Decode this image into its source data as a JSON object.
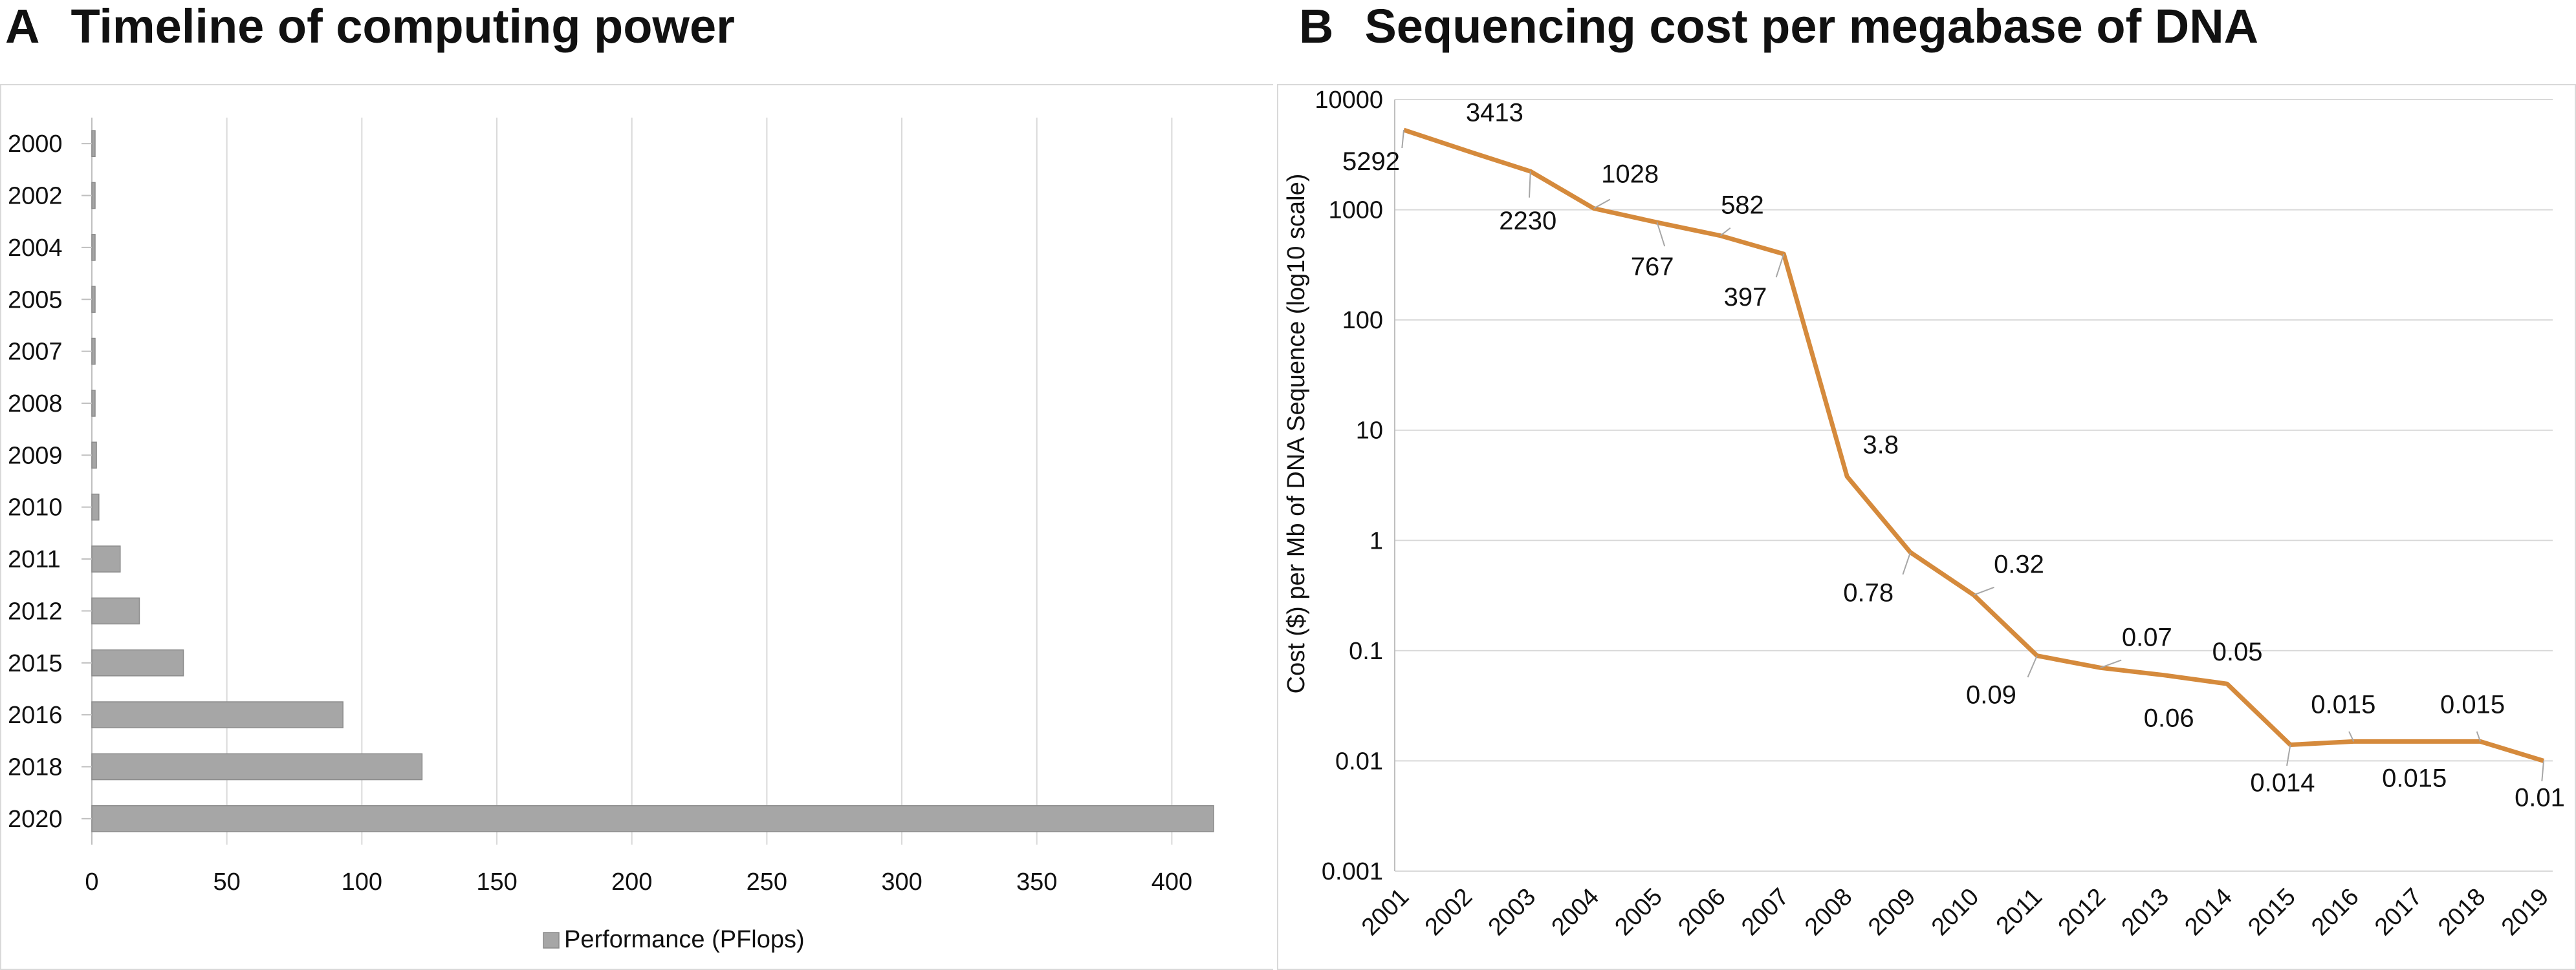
{
  "panels": {
    "a": {
      "letter": "A",
      "title": "Timeline of computing power"
    },
    "b": {
      "letter": "B",
      "title": "Sequencing cost per megabase of DNA"
    }
  },
  "chart_data": [
    {
      "type": "bar",
      "orientation": "horizontal",
      "title": "Timeline of computing power",
      "categories": [
        "2000",
        "2002",
        "2004",
        "2005",
        "2007",
        "2008",
        "2009",
        "2010",
        "2011",
        "2012",
        "2015",
        "2016",
        "2018",
        "2020"
      ],
      "series": [
        {
          "name": "Performance (PFlops)",
          "values": [
            0.005,
            0.04,
            0.07,
            0.28,
            0.48,
            1.1,
            1.7,
            2.6,
            10.5,
            17.6,
            33.9,
            93,
            122.3,
            415.5
          ]
        }
      ],
      "xlim": [
        0,
        415
      ],
      "xticks": [
        0,
        50,
        100,
        150,
        200,
        250,
        300,
        350,
        400
      ],
      "legend": "bottom",
      "legend_label": "Performance (PFlops)",
      "grid": true,
      "bar_color": "#a6a6a6"
    },
    {
      "type": "line",
      "title": "Sequencing cost per megabase of DNA",
      "ylabel": "Cost ($) per Mb of DNA Sequence (log10 scale)",
      "yscale": "log10",
      "ylim": [
        0.001,
        10000
      ],
      "yticks": [
        10000,
        1000,
        100,
        10,
        1,
        0.1,
        0.01,
        0.001
      ],
      "ytick_labels": [
        "10000",
        "1000",
        "100",
        "10",
        "1",
        "0.1",
        "0.01",
        "0.001"
      ],
      "x_labels": [
        "2001",
        "2002",
        "2003",
        "2004",
        "2005",
        "2006",
        "2007",
        "2008",
        "2009",
        "2010",
        "2011",
        "2012",
        "2013",
        "2014",
        "2015",
        "2016",
        "2017",
        "2018",
        "2019"
      ],
      "points": [
        {
          "x": 0,
          "y": 5292,
          "label": "5292"
        },
        {
          "x": 1,
          "y": 3413,
          "label": "3413"
        },
        {
          "x": 2,
          "y": 2230,
          "label": "2230"
        },
        {
          "x": 3,
          "y": 1028,
          "label": "1028"
        },
        {
          "x": 4,
          "y": 767,
          "label": "767"
        },
        {
          "x": 5,
          "y": 582,
          "label": "582"
        },
        {
          "x": 6,
          "y": 397,
          "label": "397"
        },
        {
          "x": 7,
          "y": 3.8,
          "label": "3.8"
        },
        {
          "x": 8,
          "y": 0.78,
          "label": "0.78"
        },
        {
          "x": 9,
          "y": 0.32,
          "label": "0.32"
        },
        {
          "x": 10,
          "y": 0.09,
          "label": "0.09"
        },
        {
          "x": 11,
          "y": 0.07,
          "label": "0.07"
        },
        {
          "x": 12,
          "y": 0.06,
          "label": "0.06"
        },
        {
          "x": 13,
          "y": 0.05,
          "label": "0.05"
        },
        {
          "x": 14,
          "y": 0.014,
          "label": "0.014"
        },
        {
          "x": 15,
          "y": 0.015,
          "label": "0.015"
        },
        {
          "x": 16,
          "y": 0.015,
          "label": "0.015"
        },
        {
          "x": 17,
          "y": 0.015,
          "label": "0.015"
        },
        {
          "x": 18,
          "y": 0.01,
          "label": "0.01"
        }
      ],
      "grid": true,
      "line_color": "#d58a3c"
    }
  ]
}
